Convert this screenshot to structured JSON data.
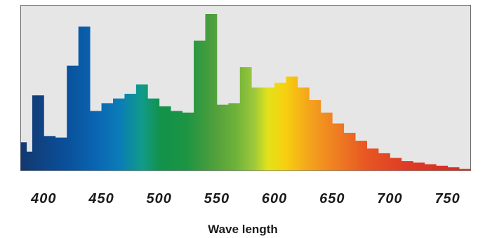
{
  "chart_data": {
    "type": "bar",
    "xlabel": "Wave length",
    "ylabel": "",
    "title": "",
    "xlim": [
      380,
      770
    ],
    "ylim": [
      0,
      100
    ],
    "bin_width": 10,
    "x_ticks": [
      400,
      450,
      500,
      550,
      600,
      650,
      700,
      750
    ],
    "grid": false,
    "background_color": "#e6e6e6",
    "x": [
      380,
      385,
      395,
      405,
      415,
      425,
      435,
      445,
      455,
      465,
      475,
      485,
      495,
      505,
      515,
      525,
      535,
      545,
      555,
      565,
      575,
      585,
      595,
      605,
      615,
      625,
      635,
      645,
      655,
      665,
      675,
      685,
      695,
      705,
      715,
      725,
      735,
      745,
      755,
      765
    ],
    "values": [
      18,
      12,
      48,
      22,
      21,
      67,
      92,
      38,
      43,
      46,
      49,
      55,
      46,
      41,
      38,
      37,
      83,
      100,
      42,
      43,
      66,
      53,
      53,
      56,
      60,
      53,
      45,
      37,
      30,
      24,
      19,
      14,
      11,
      8,
      6,
      5,
      4,
      3,
      2,
      1
    ]
  }
}
